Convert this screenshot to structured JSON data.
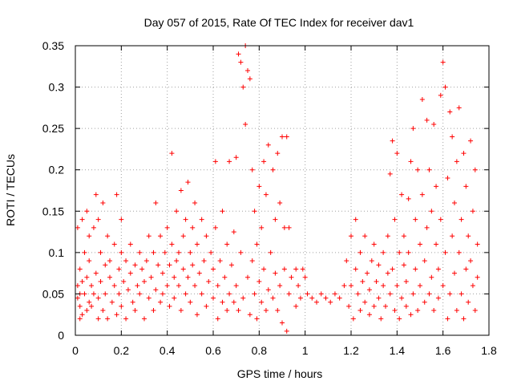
{
  "chart_data": {
    "type": "scatter",
    "title": "Day 057 of 2015, Rate Of TEC Index for receiver dav1",
    "xlabel": "GPS time / hours",
    "ylabel": "ROTI / TECUs",
    "xlim": [
      0,
      1.8
    ],
    "ylim": [
      0,
      0.35
    ],
    "xticks": [
      "0",
      "0.2",
      "0.4",
      "0.6",
      "0.8",
      "1",
      "1.2",
      "1.4",
      "1.6",
      "1.8"
    ],
    "yticks": [
      "0",
      "0.05",
      "0.1",
      "0.15",
      "0.2",
      "0.25",
      "0.3",
      "0.35"
    ],
    "xtick_values": [
      0,
      0.2,
      0.4,
      0.6,
      0.8,
      1.0,
      1.2,
      1.4,
      1.6,
      1.8
    ],
    "ytick_values": [
      0,
      0.05,
      0.1,
      0.15,
      0.2,
      0.25,
      0.3,
      0.35
    ],
    "grid": true,
    "marker": "+",
    "series": [
      {
        "color": "#ff0000",
        "points": [
          [
            0.01,
            0.045
          ],
          [
            0.01,
            0.06
          ],
          [
            0.01,
            0.13
          ],
          [
            0.02,
            0.02
          ],
          [
            0.02,
            0.035
          ],
          [
            0.02,
            0.05
          ],
          [
            0.02,
            0.08
          ],
          [
            0.03,
            0.14
          ],
          [
            0.03,
            0.025
          ],
          [
            0.03,
            0.065
          ],
          [
            0.04,
            0.1
          ],
          [
            0.04,
            0.05
          ],
          [
            0.05,
            0.15
          ],
          [
            0.05,
            0.07
          ],
          [
            0.05,
            0.03
          ],
          [
            0.06,
            0.04
          ],
          [
            0.06,
            0.09
          ],
          [
            0.06,
            0.12
          ],
          [
            0.07,
            0.06
          ],
          [
            0.07,
            0.035
          ],
          [
            0.08,
            0.13
          ],
          [
            0.08,
            0.05
          ],
          [
            0.09,
            0.17
          ],
          [
            0.09,
            0.075
          ],
          [
            0.1,
            0.14
          ],
          [
            0.1,
            0.045
          ],
          [
            0.1,
            0.02
          ],
          [
            0.11,
            0.1
          ],
          [
            0.11,
            0.065
          ],
          [
            0.12,
            0.16
          ],
          [
            0.12,
            0.03
          ],
          [
            0.13,
            0.085
          ],
          [
            0.13,
            0.05
          ],
          [
            0.14,
            0.12
          ],
          [
            0.14,
            0.02
          ],
          [
            0.15,
            0.07
          ],
          [
            0.15,
            0.09
          ],
          [
            0.16,
            0.04
          ],
          [
            0.17,
            0.11
          ],
          [
            0.17,
            0.06
          ],
          [
            0.18,
            0.17
          ],
          [
            0.18,
            0.025
          ],
          [
            0.19,
            0.08
          ],
          [
            0.19,
            0.05
          ],
          [
            0.2,
            0.1
          ],
          [
            0.2,
            0.035
          ],
          [
            0.2,
            0.14
          ],
          [
            0.21,
            0.065
          ],
          [
            0.22,
            0.09
          ],
          [
            0.22,
            0.02
          ],
          [
            0.23,
            0.055
          ],
          [
            0.24,
            0.11
          ],
          [
            0.24,
            0.075
          ],
          [
            0.25,
            0.04
          ],
          [
            0.26,
            0.085
          ],
          [
            0.26,
            0.03
          ],
          [
            0.27,
            0.06
          ],
          [
            0.28,
            0.1
          ],
          [
            0.28,
            0.05
          ],
          [
            0.29,
            0.08
          ],
          [
            0.3,
            0.02
          ],
          [
            0.3,
            0.065
          ],
          [
            0.31,
            0.09
          ],
          [
            0.32,
            0.045
          ],
          [
            0.32,
            0.12
          ],
          [
            0.33,
            0.07
          ],
          [
            0.34,
            0.1
          ],
          [
            0.34,
            0.03
          ],
          [
            0.35,
            0.16
          ],
          [
            0.35,
            0.055
          ],
          [
            0.36,
            0.085
          ],
          [
            0.37,
            0.04
          ],
          [
            0.37,
            0.12
          ],
          [
            0.38,
            0.075
          ],
          [
            0.38,
            0.05
          ],
          [
            0.39,
            0.1
          ],
          [
            0.4,
            0.06
          ],
          [
            0.4,
            0.13
          ],
          [
            0.41,
            0.085
          ],
          [
            0.41,
            0.035
          ],
          [
            0.42,
            0.22
          ],
          [
            0.42,
            0.11
          ],
          [
            0.43,
            0.07
          ],
          [
            0.43,
            0.045
          ],
          [
            0.44,
            0.15
          ],
          [
            0.44,
            0.09
          ],
          [
            0.45,
            0.06
          ],
          [
            0.45,
            0.1
          ],
          [
            0.46,
            0.175
          ],
          [
            0.46,
            0.03
          ],
          [
            0.47,
            0.08
          ],
          [
            0.47,
            0.12
          ],
          [
            0.48,
            0.05
          ],
          [
            0.48,
            0.14
          ],
          [
            0.49,
            0.185
          ],
          [
            0.49,
            0.07
          ],
          [
            0.5,
            0.1
          ],
          [
            0.5,
            0.04
          ],
          [
            0.51,
            0.13
          ],
          [
            0.51,
            0.085
          ],
          [
            0.52,
            0.06
          ],
          [
            0.52,
            0.16
          ],
          [
            0.53,
            0.025
          ],
          [
            0.53,
            0.11
          ],
          [
            0.54,
            0.075
          ],
          [
            0.55,
            0.14
          ],
          [
            0.55,
            0.05
          ],
          [
            0.56,
            0.09
          ],
          [
            0.57,
            0.12
          ],
          [
            0.57,
            0.035
          ],
          [
            0.58,
            0.065
          ],
          [
            0.59,
            0.1
          ],
          [
            0.6,
            0.045
          ],
          [
            0.6,
            0.08
          ],
          [
            0.61,
            0.21
          ],
          [
            0.61,
            0.13
          ],
          [
            0.62,
            0.06
          ],
          [
            0.62,
            0.02
          ],
          [
            0.63,
            0.09
          ],
          [
            0.64,
            0.04
          ],
          [
            0.64,
            0.15
          ],
          [
            0.65,
            0.07
          ],
          [
            0.66,
            0.03
          ],
          [
            0.66,
            0.11
          ],
          [
            0.67,
            0.05
          ],
          [
            0.67,
            0.21
          ],
          [
            0.68,
            0.085
          ],
          [
            0.69,
            0.04
          ],
          [
            0.69,
            0.125
          ],
          [
            0.7,
            0.215
          ],
          [
            0.7,
            0.06
          ],
          [
            0.71,
            0.34
          ],
          [
            0.71,
            0.03
          ],
          [
            0.72,
            0.1
          ],
          [
            0.72,
            0.33
          ],
          [
            0.73,
            0.3
          ],
          [
            0.73,
            0.045
          ],
          [
            0.74,
            0.35
          ],
          [
            0.74,
            0.255
          ],
          [
            0.75,
            0.32
          ],
          [
            0.75,
            0.07
          ],
          [
            0.76,
            0.31
          ],
          [
            0.76,
            0.025
          ],
          [
            0.77,
            0.09
          ],
          [
            0.77,
            0.2
          ],
          [
            0.78,
            0.05
          ],
          [
            0.78,
            0.15
          ],
          [
            0.79,
            0.02
          ],
          [
            0.79,
            0.11
          ],
          [
            0.8,
            0.18
          ],
          [
            0.8,
            0.065
          ],
          [
            0.81,
            0.04
          ],
          [
            0.81,
            0.13
          ],
          [
            0.82,
            0.21
          ],
          [
            0.82,
            0.08
          ],
          [
            0.83,
            0.17
          ],
          [
            0.83,
            0.03
          ],
          [
            0.84,
            0.23
          ],
          [
            0.84,
            0.055
          ],
          [
            0.85,
            0.1
          ],
          [
            0.86,
            0.2
          ],
          [
            0.86,
            0.045
          ],
          [
            0.87,
            0.14
          ],
          [
            0.87,
            0.075
          ],
          [
            0.88,
            0.22
          ],
          [
            0.88,
            0.03
          ],
          [
            0.89,
            0.16
          ],
          [
            0.89,
            0.06
          ],
          [
            0.9,
            0.24
          ],
          [
            0.9,
            0.015
          ],
          [
            0.91,
            0.13
          ],
          [
            0.91,
            0.08
          ],
          [
            0.92,
            0.005
          ],
          [
            0.92,
            0.24
          ],
          [
            0.93,
            0.05
          ],
          [
            0.93,
            0.13
          ],
          [
            0.94,
            0.07
          ],
          [
            0.96,
            0.035
          ],
          [
            0.96,
            0.08
          ],
          [
            0.97,
            0.06
          ],
          [
            0.98,
            0.045
          ],
          [
            0.99,
            0.08
          ],
          [
            1.0,
            0.07
          ],
          [
            1.01,
            0.05
          ],
          [
            1.03,
            0.045
          ],
          [
            1.05,
            0.04
          ],
          [
            1.07,
            0.05
          ],
          [
            1.09,
            0.045
          ],
          [
            1.11,
            0.04
          ],
          [
            1.13,
            0.05
          ],
          [
            1.15,
            0.045
          ],
          [
            1.17,
            0.06
          ],
          [
            1.18,
            0.09
          ],
          [
            1.19,
            0.035
          ],
          [
            1.2,
            0.12
          ],
          [
            1.2,
            0.06
          ],
          [
            1.21,
            0.02
          ],
          [
            1.22,
            0.08
          ],
          [
            1.22,
            0.14
          ],
          [
            1.23,
            0.05
          ],
          [
            1.24,
            0.03
          ],
          [
            1.24,
            0.1
          ],
          [
            1.25,
            0.065
          ],
          [
            1.26,
            0.04
          ],
          [
            1.26,
            0.12
          ],
          [
            1.27,
            0.075
          ],
          [
            1.28,
            0.025
          ],
          [
            1.28,
            0.055
          ],
          [
            1.29,
            0.09
          ],
          [
            1.3,
            0.035
          ],
          [
            1.3,
            0.11
          ],
          [
            1.31,
            0.065
          ],
          [
            1.32,
            0.045
          ],
          [
            1.32,
            0.085
          ],
          [
            1.33,
            0.02
          ],
          [
            1.34,
            0.06
          ],
          [
            1.34,
            0.1
          ],
          [
            1.35,
            0.035
          ],
          [
            1.36,
            0.075
          ],
          [
            1.36,
            0.12
          ],
          [
            1.37,
            0.195
          ],
          [
            1.37,
            0.05
          ],
          [
            1.38,
            0.235
          ],
          [
            1.38,
            0.08
          ],
          [
            1.39,
            0.03
          ],
          [
            1.39,
            0.14
          ],
          [
            1.4,
            0.06
          ],
          [
            1.4,
            0.22
          ],
          [
            1.41,
            0.1
          ],
          [
            1.41,
            0.02
          ],
          [
            1.42,
            0.045
          ],
          [
            1.42,
            0.17
          ],
          [
            1.43,
            0.085
          ],
          [
            1.43,
            0.12
          ],
          [
            1.44,
            0.035
          ],
          [
            1.44,
            0.065
          ],
          [
            1.45,
            0.165
          ],
          [
            1.45,
            0.1
          ],
          [
            1.46,
            0.025
          ],
          [
            1.46,
            0.21
          ],
          [
            1.47,
            0.05
          ],
          [
            1.47,
            0.25
          ],
          [
            1.48,
            0.08
          ],
          [
            1.48,
            0.14
          ],
          [
            1.49,
            0.2
          ],
          [
            1.49,
            0.03
          ],
          [
            1.5,
            0.06
          ],
          [
            1.5,
            0.11
          ],
          [
            1.51,
            0.285
          ],
          [
            1.51,
            0.17
          ],
          [
            1.52,
            0.04
          ],
          [
            1.52,
            0.09
          ],
          [
            1.53,
            0.26
          ],
          [
            1.53,
            0.13
          ],
          [
            1.54,
            0.05
          ],
          [
            1.54,
            0.2
          ],
          [
            1.55,
            0.07
          ],
          [
            1.55,
            0.15
          ],
          [
            1.56,
            0.03
          ],
          [
            1.56,
            0.255
          ],
          [
            1.57,
            0.11
          ],
          [
            1.57,
            0.18
          ],
          [
            1.58,
            0.045
          ],
          [
            1.58,
            0.08
          ],
          [
            1.59,
            0.29
          ],
          [
            1.59,
            0.14
          ],
          [
            1.6,
            0.33
          ],
          [
            1.6,
            0.06
          ],
          [
            1.61,
            0.3
          ],
          [
            1.61,
            0.1
          ],
          [
            1.62,
            0.02
          ],
          [
            1.62,
            0.19
          ],
          [
            1.63,
            0.27
          ],
          [
            1.63,
            0.05
          ],
          [
            1.64,
            0.12
          ],
          [
            1.64,
            0.24
          ],
          [
            1.65,
            0.075
          ],
          [
            1.65,
            0.16
          ],
          [
            1.66,
            0.03
          ],
          [
            1.66,
            0.21
          ],
          [
            1.67,
            0.1
          ],
          [
            1.67,
            0.275
          ],
          [
            1.68,
            0.05
          ],
          [
            1.68,
            0.14
          ],
          [
            1.69,
            0.22
          ],
          [
            1.69,
            0.02
          ],
          [
            1.7,
            0.08
          ],
          [
            1.7,
            0.18
          ],
          [
            1.71,
            0.12
          ],
          [
            1.71,
            0.04
          ],
          [
            1.72,
            0.235
          ],
          [
            1.72,
            0.09
          ],
          [
            1.73,
            0.06
          ],
          [
            1.73,
            0.15
          ],
          [
            1.74,
            0.03
          ],
          [
            1.74,
            0.2
          ],
          [
            1.75,
            0.11
          ],
          [
            1.75,
            0.07
          ]
        ]
      }
    ]
  }
}
